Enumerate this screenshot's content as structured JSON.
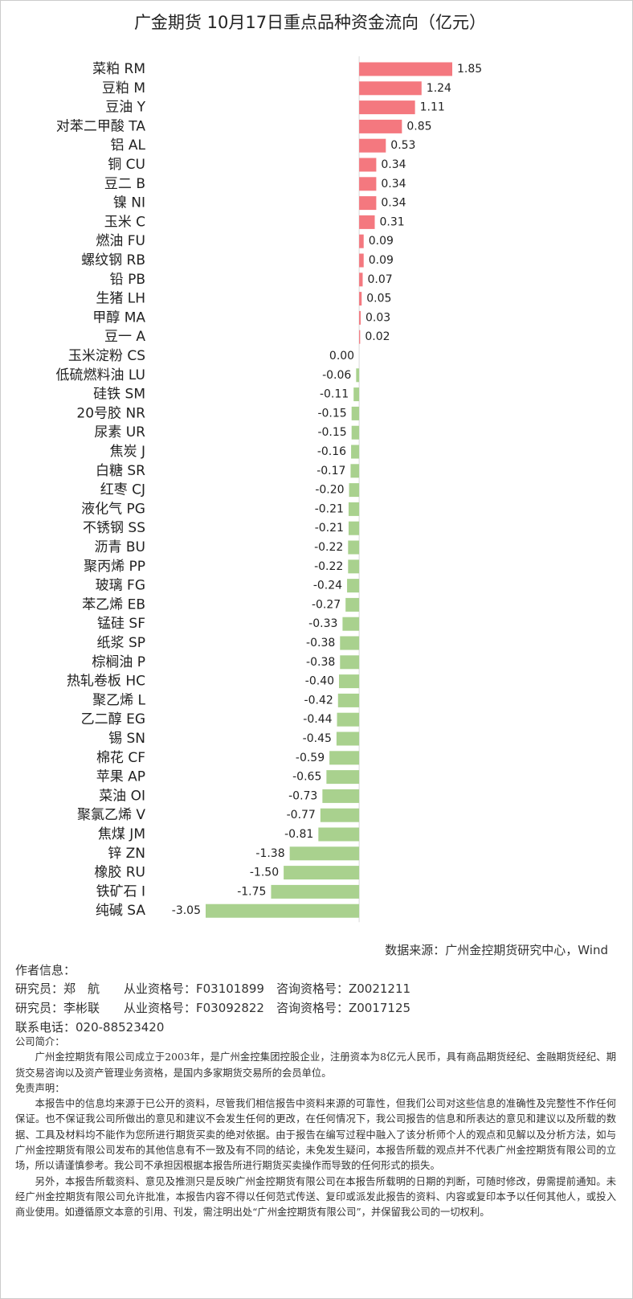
{
  "chart_data": {
    "type": "barh",
    "title": "广金期货 10月17日重点品种资金流向（亿元）",
    "categories": [
      "菜粕 RM",
      "豆粕 M",
      "豆油 Y",
      "对苯二甲酸 TA",
      "铝 AL",
      "铜 CU",
      "豆二 B",
      "镍 NI",
      "玉米 C",
      "燃油 FU",
      "螺纹钢 RB",
      "铅 PB",
      "生猪 LH",
      "甲醇 MA",
      "豆一 A",
      "玉米淀粉 CS",
      "低硫燃料油 LU",
      "硅铁 SM",
      "20号胶 NR",
      "尿素 UR",
      "焦炭 J",
      "白糖 SR",
      "红枣 CJ",
      "液化气 PG",
      "不锈钢 SS",
      "沥青 BU",
      "聚丙烯 PP",
      "玻璃 FG",
      "苯乙烯 EB",
      "锰硅 SF",
      "纸浆 SP",
      "棕榈油 P",
      "热轧卷板 HC",
      "聚乙烯 L",
      "乙二醇 EG",
      "锡 SN",
      "棉花 CF",
      "苹果 AP",
      "菜油 OI",
      "聚氯乙烯 V",
      "焦煤 JM",
      "锌 ZN",
      "橡胶 RU",
      "铁矿石 I",
      "纯碱 SA"
    ],
    "values": [
      1.85,
      1.24,
      1.11,
      0.85,
      0.53,
      0.34,
      0.34,
      0.34,
      0.31,
      0.09,
      0.09,
      0.07,
      0.05,
      0.03,
      0.02,
      0.0,
      -0.06,
      -0.11,
      -0.15,
      -0.15,
      -0.16,
      -0.17,
      -0.2,
      -0.21,
      -0.21,
      -0.22,
      -0.22,
      -0.24,
      -0.27,
      -0.33,
      -0.38,
      -0.38,
      -0.4,
      -0.42,
      -0.44,
      -0.45,
      -0.59,
      -0.65,
      -0.73,
      -0.77,
      -0.81,
      -1.38,
      -1.5,
      -1.75,
      -3.05
    ],
    "value_labels": [
      "1.85",
      "1.24",
      "1.11",
      "0.85",
      "0.53",
      "0.34",
      "0.34",
      "0.34",
      "0.31",
      "0.09",
      "0.09",
      "0.07",
      "0.05",
      "0.03",
      "0.02",
      "0.00",
      "-0.06",
      "-0.11",
      "-0.15",
      "-0.15",
      "-0.16",
      "-0.17",
      "-0.20",
      "-0.21",
      "-0.21",
      "-0.22",
      "-0.22",
      "-0.24",
      "-0.27",
      "-0.33",
      "-0.38",
      "-0.38",
      "-0.40",
      "-0.42",
      "-0.44",
      "-0.45",
      "-0.59",
      "-0.65",
      "-0.73",
      "-0.77",
      "-0.81",
      "-1.38",
      "-1.50",
      "-1.75",
      "-3.05"
    ],
    "positive_color": "#f4787f",
    "negative_color": "#a9d18e"
  },
  "source": "数据来源：广州金控期货研究中心，Wind",
  "author_heading": "作者信息：",
  "author_lines": [
    "研究员：郑　航　　从业资格号：F03101899　咨询资格号：Z0021211",
    "研究员：李彬联　　从业资格号：F03092822　咨询资格号：Z0017125"
  ],
  "phone": "联系电话：020-88523420",
  "intro_heading": "公司简介：",
  "intro": "广州金控期货有限公司成立于2003年，是广州金控集团控股企业，注册资本为8亿元人民币，具有商品期货经纪、金融期货经纪、期货交易咨询以及资产管理业务资格，是国内多家期货交易所的会员单位。",
  "disclaimer_heading": "免责声明：",
  "disclaimer": [
    "本报告中的信息均来源于已公开的资料，尽管我们相信报告中资料来源的可靠性，但我们公司对这些信息的准确性及完整性不作任何保证。也不保证我公司所做出的意见和建议不会发生任何的更改，在任何情况下，我公司报告的信息和所表达的意见和建议以及所载的数据、工具及材料均不能作为您所进行期货买卖的绝对依据。由于报告在编写过程中融入了该分析师个人的观点和见解以及分析方法，如与广州金控期货有限公司发布的其他信息有不一致及有不同的结论，未免发生疑问，本报告所载的观点并不代表广州金控期货有限公司的立场，所以请谨慎参考。我公司不承担因根据本报告所进行期货买卖操作而导致的任何形式的损失。",
    "另外，本报告所载资料、意见及推测只是反映广州金控期货有限公司在本报告所载明的日期的判断，可随时修改，毋需提前通知。未经广州金控期货有限公司允许批准，本报告内容不得以任何范式传送、复印或派发此报告的资料、内容或复印本予以任何其他人，或投入商业使用。如遵循原文本意的引用、刊发，需注明出处“广州金控期货有限公司”，并保留我公司的一切权利。"
  ]
}
